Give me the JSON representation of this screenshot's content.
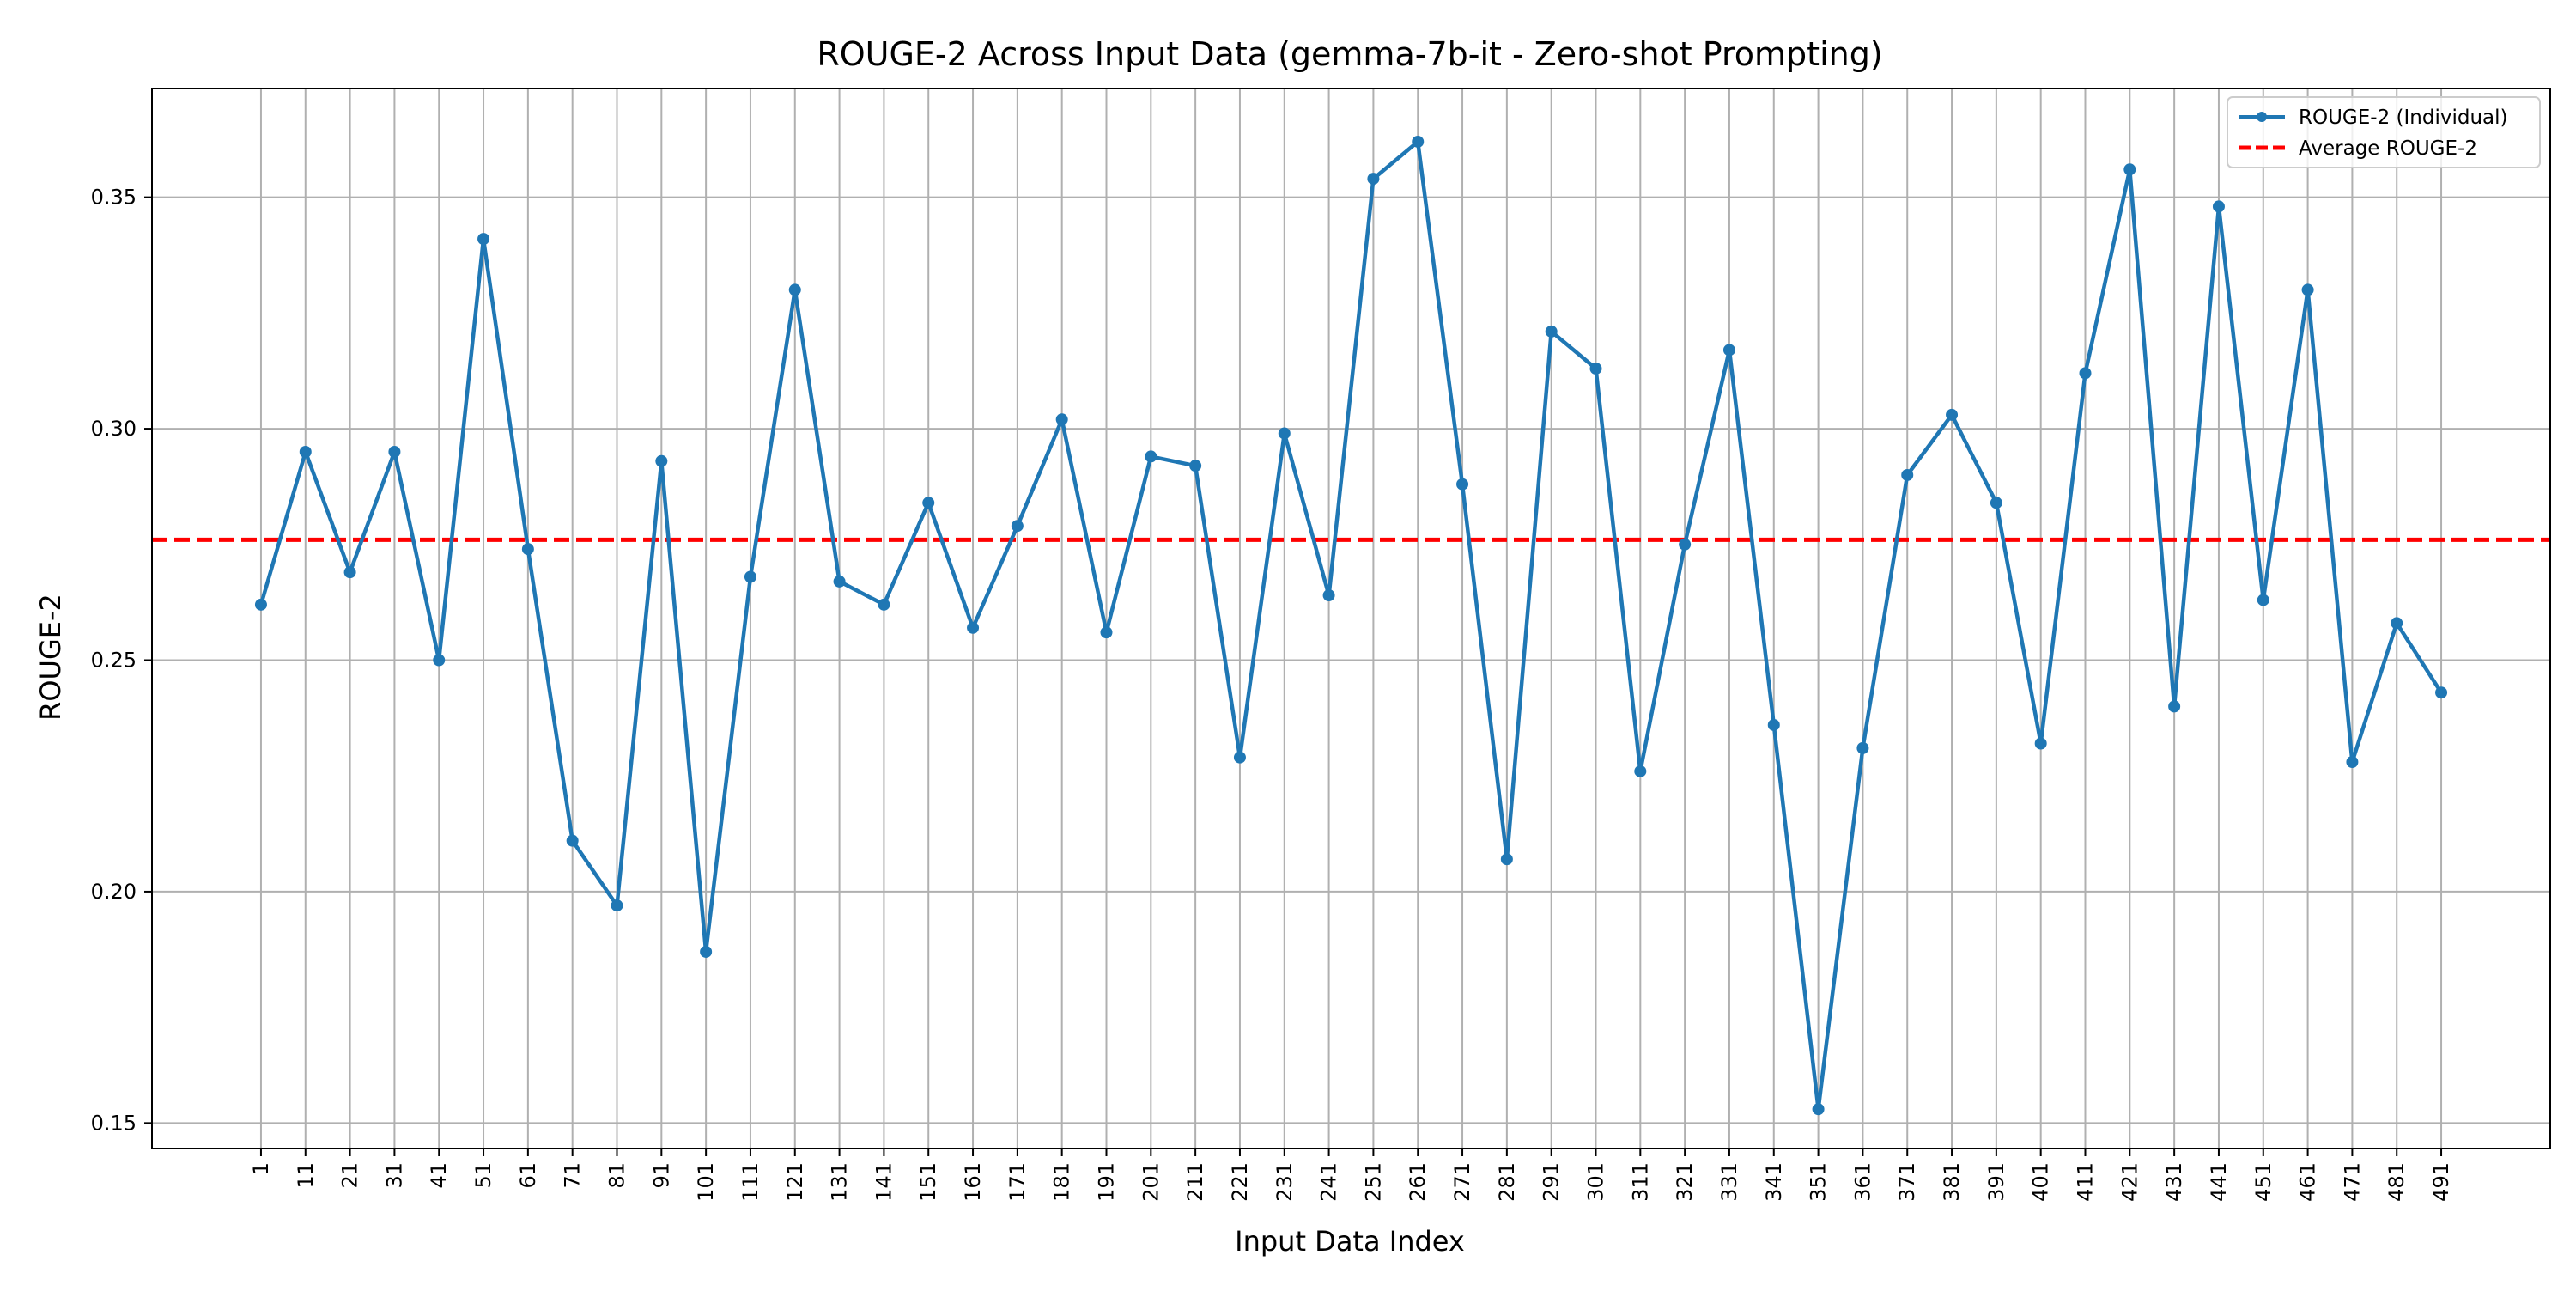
{
  "chart_data": {
    "type": "line",
    "title": "ROUGE-2 Across Input Data (gemma-7b-it - Zero-shot Prompting)",
    "xlabel": "Input Data Index",
    "ylabel": "ROUGE-2",
    "x": [
      1,
      11,
      21,
      31,
      41,
      51,
      61,
      71,
      81,
      91,
      101,
      111,
      121,
      131,
      141,
      151,
      161,
      171,
      181,
      191,
      201,
      211,
      221,
      231,
      241,
      251,
      261,
      271,
      281,
      291,
      301,
      311,
      321,
      331,
      341,
      351,
      361,
      371,
      381,
      391,
      401,
      411,
      421,
      431,
      441,
      451,
      461,
      471,
      481,
      491
    ],
    "series": [
      {
        "name": "ROUGE-2 (Individual)",
        "color": "#1f77b4",
        "values": [
          0.262,
          0.295,
          0.269,
          0.295,
          0.25,
          0.341,
          0.274,
          0.211,
          0.197,
          0.293,
          0.187,
          0.268,
          0.33,
          0.267,
          0.262,
          0.284,
          0.257,
          0.279,
          0.302,
          0.256,
          0.294,
          0.292,
          0.229,
          0.299,
          0.264,
          0.354,
          0.362,
          0.288,
          0.207,
          0.321,
          0.313,
          0.226,
          0.275,
          0.317,
          0.236,
          0.153,
          0.231,
          0.29,
          0.303,
          0.284,
          0.232,
          0.312,
          0.356,
          0.24,
          0.348,
          0.263,
          0.33,
          0.228,
          0.258,
          0.243
        ]
      }
    ],
    "average": {
      "name": "Average ROUGE-2",
      "value": 0.276,
      "color": "#ff0000"
    },
    "ylim": [
      0.1445,
      0.3735
    ],
    "xlim": [
      -23.5,
      515.5
    ],
    "yticks": [
      0.15,
      0.2,
      0.25,
      0.3,
      0.35
    ],
    "ytick_labels": [
      "0.15",
      "0.20",
      "0.25",
      "0.30",
      "0.35"
    ],
    "grid": true,
    "legend_position": "top-right"
  }
}
